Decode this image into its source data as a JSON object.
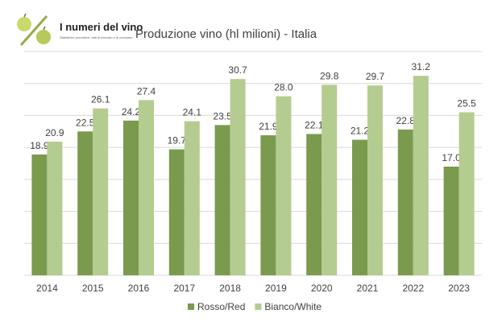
{
  "logo": {
    "title": "I numeri del vino",
    "subtitle": "Statistiche produttive, dati di mercato e di consumo",
    "icon": "percent-grapes-logo"
  },
  "chart_data": {
    "type": "bar",
    "title": "Produzione vino (hl milioni) - Italia",
    "categories": [
      "2014",
      "2015",
      "2016",
      "2017",
      "2018",
      "2019",
      "2020",
      "2021",
      "2022",
      "2023"
    ],
    "series": [
      {
        "name": "Rosso/Red",
        "color": "#7a9a4e",
        "values": [
          18.9,
          22.5,
          24.2,
          19.7,
          23.5,
          21.9,
          22.1,
          21.2,
          22.8,
          17.0
        ]
      },
      {
        "name": "Bianco/White",
        "color": "#b5cc90",
        "values": [
          20.9,
          26.1,
          27.4,
          24.1,
          30.7,
          28.0,
          29.8,
          29.7,
          31.2,
          25.5
        ]
      }
    ],
    "ylim": [
      0,
      35
    ],
    "grid": true,
    "legend": "bottom"
  }
}
